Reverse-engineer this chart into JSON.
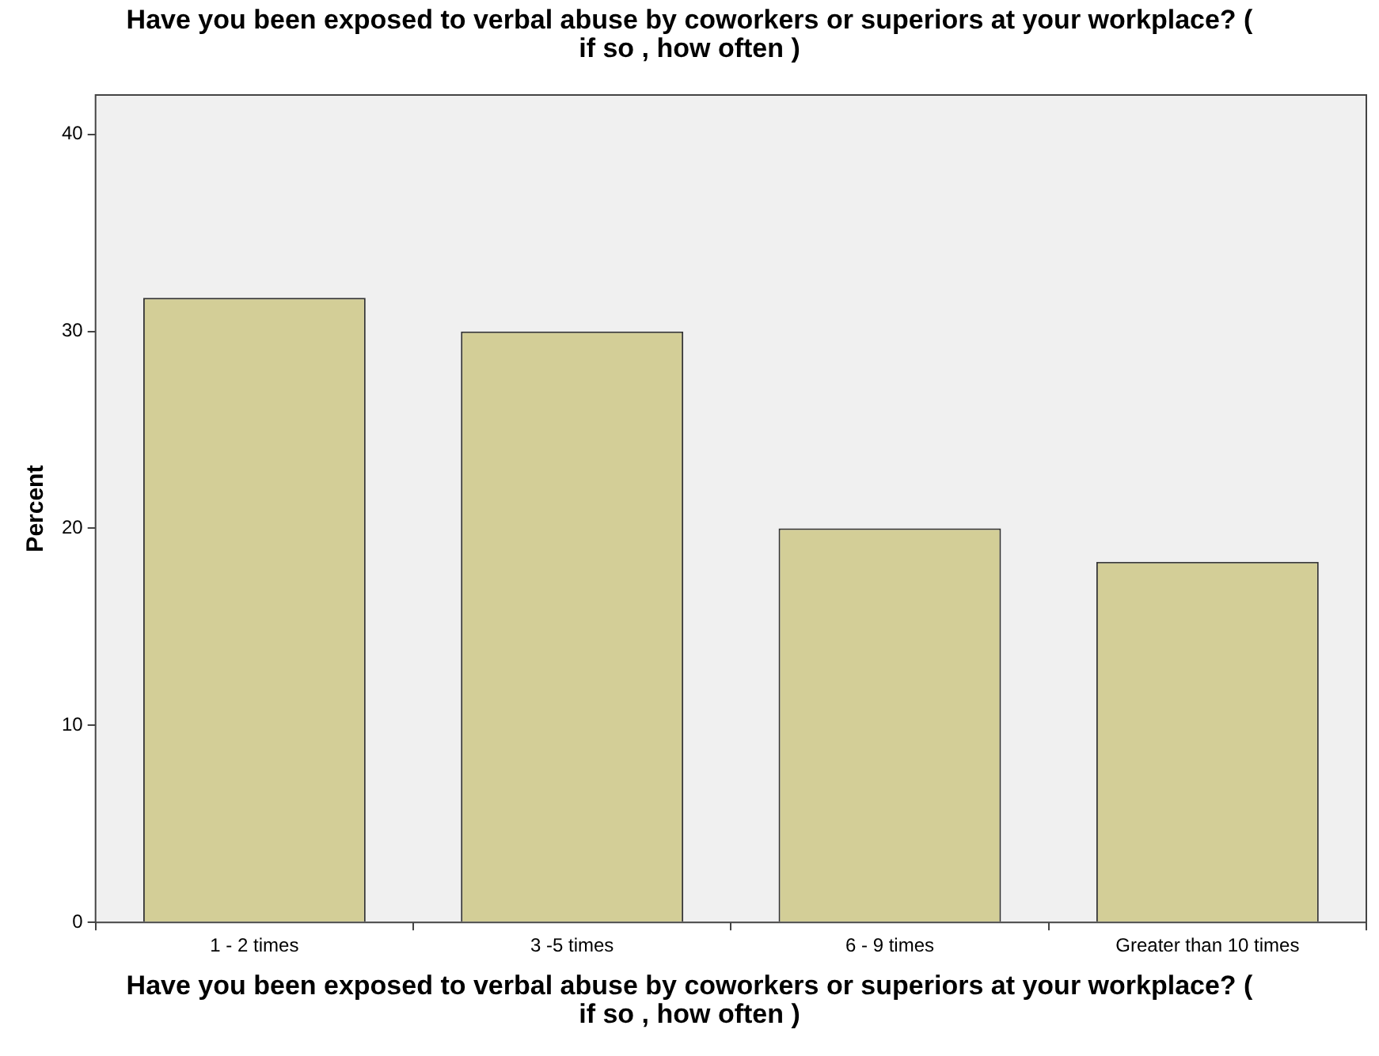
{
  "chart_data": {
    "type": "bar",
    "title": "Have you been exposed to verbal abuse by coworkers or superiors at your workplace?  ( if so , how often )",
    "xlabel": "Have you been exposed to verbal abuse by coworkers or superiors at your workplace?  ( if so , how often )",
    "ylabel": "Percent",
    "categories": [
      "1 - 2 times",
      "3 -5 times",
      "6 - 9 times",
      "Greater than 10 times"
    ],
    "values": [
      31.7,
      30.0,
      20.0,
      18.3
    ],
    "color": "#d3ce97",
    "ylim": [
      0,
      42
    ],
    "yticks": [
      0,
      10,
      20,
      30,
      40
    ],
    "legend": false
  }
}
